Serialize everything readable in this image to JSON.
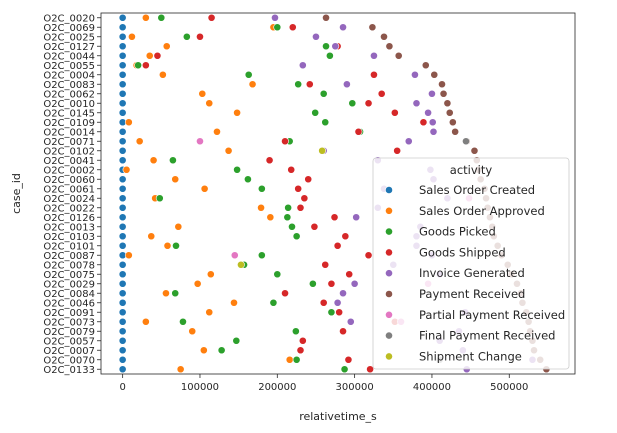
{
  "chart_data": {
    "type": "scatter",
    "xlabel": "relativetime_s",
    "ylabel": "case_id",
    "xlim": [
      -28000,
      585000
    ],
    "xticks": [
      0,
      100000,
      200000,
      300000,
      400000,
      500000
    ],
    "categories": [
      "O2C_0020",
      "O2C_0069",
      "O2C_0025",
      "O2C_0127",
      "O2C_0044",
      "O2C_0055",
      "O2C_0004",
      "O2C_0083",
      "O2C_0062",
      "O2C_0010",
      "O2C_0145",
      "O2C_0109",
      "O2C_0014",
      "O2C_0071",
      "O2C_0102",
      "O2C_0041",
      "O2C_0002",
      "O2C_0060",
      "O2C_0061",
      "O2C_0024",
      "O2C_0022",
      "O2C_0126",
      "O2C_0013",
      "O2C_0103",
      "O2C_0101",
      "O2C_0087",
      "O2C_0078",
      "O2C_0075",
      "O2C_0029",
      "O2C_0084",
      "O2C_0046",
      "O2C_0091",
      "O2C_0073",
      "O2C_0079",
      "O2C_0057",
      "O2C_0007",
      "O2C_0070",
      "O2C_0133"
    ],
    "legend": {
      "title": "activity",
      "position": "lower-right"
    },
    "series": [
      {
        "name": "Sales Order Created",
        "color": "#1f77b4",
        "points": [
          [
            0,
            0
          ],
          [
            0,
            1
          ],
          [
            0,
            2
          ],
          [
            0,
            3
          ],
          [
            0,
            4
          ],
          [
            0,
            5
          ],
          [
            0,
            6
          ],
          [
            0,
            7
          ],
          [
            0,
            8
          ],
          [
            0,
            9
          ],
          [
            0,
            10
          ],
          [
            0,
            11
          ],
          [
            0,
            12
          ],
          [
            0,
            13
          ],
          [
            0,
            14
          ],
          [
            0,
            15
          ],
          [
            0,
            16
          ],
          [
            0,
            17
          ],
          [
            0,
            18
          ],
          [
            0,
            19
          ],
          [
            0,
            20
          ],
          [
            0,
            21
          ],
          [
            0,
            22
          ],
          [
            0,
            23
          ],
          [
            0,
            24
          ],
          [
            0,
            25
          ],
          [
            0,
            26
          ],
          [
            0,
            27
          ],
          [
            0,
            28
          ],
          [
            0,
            29
          ],
          [
            0,
            30
          ],
          [
            0,
            31
          ],
          [
            0,
            32
          ],
          [
            0,
            33
          ],
          [
            0,
            34
          ],
          [
            0,
            35
          ],
          [
            0,
            36
          ],
          [
            0,
            37
          ]
        ]
      },
      {
        "name": "Sales Order Approved",
        "color": "#ff7f0e",
        "points": [
          [
            30000,
            0
          ],
          [
            195000,
            1
          ],
          [
            12000,
            2
          ],
          [
            57000,
            3
          ],
          [
            35000,
            4
          ],
          [
            18000,
            5
          ],
          [
            52000,
            6
          ],
          [
            168000,
            7
          ],
          [
            103000,
            8
          ],
          [
            112000,
            9
          ],
          [
            148000,
            10
          ],
          [
            8000,
            11
          ],
          [
            122000,
            12
          ],
          [
            22000,
            13
          ],
          [
            137000,
            14
          ],
          [
            40000,
            15
          ],
          [
            5000,
            16
          ],
          [
            68000,
            17
          ],
          [
            106000,
            18
          ],
          [
            42000,
            19
          ],
          [
            179000,
            20
          ],
          [
            191000,
            21
          ],
          [
            72000,
            22
          ],
          [
            37000,
            23
          ],
          [
            58000,
            24
          ],
          [
            8000,
            25
          ],
          [
            155000,
            26
          ],
          [
            114000,
            27
          ],
          [
            97000,
            28
          ],
          [
            56000,
            29
          ],
          [
            144000,
            30
          ],
          [
            112000,
            31
          ],
          [
            30000,
            32
          ],
          [
            90000,
            33
          ],
          [
            147000,
            34
          ],
          [
            105000,
            35
          ],
          [
            216000,
            36
          ],
          [
            75000,
            37
          ]
        ]
      },
      {
        "name": "Goods Picked",
        "color": "#2ca02c",
        "points": [
          [
            50000,
            0
          ],
          [
            200000,
            1
          ],
          [
            83000,
            2
          ],
          [
            263000,
            3
          ],
          [
            268000,
            4
          ],
          [
            20000,
            5
          ],
          [
            163000,
            6
          ],
          [
            227000,
            7
          ],
          [
            260000,
            8
          ],
          [
            297000,
            9
          ],
          [
            249000,
            10
          ],
          [
            262000,
            11
          ],
          [
            307000,
            12
          ],
          [
            216000,
            13
          ],
          [
            260000,
            14
          ],
          [
            65000,
            15
          ],
          [
            148000,
            16
          ],
          [
            162000,
            17
          ],
          [
            180000,
            18
          ],
          [
            48000,
            19
          ],
          [
            214000,
            20
          ],
          [
            213000,
            21
          ],
          [
            219000,
            22
          ],
          [
            225000,
            23
          ],
          [
            69000,
            24
          ],
          [
            180000,
            25
          ],
          [
            157000,
            26
          ],
          [
            200000,
            27
          ],
          [
            246000,
            28
          ],
          [
            68000,
            29
          ],
          [
            195000,
            30
          ],
          [
            270000,
            31
          ],
          [
            78000,
            32
          ],
          [
            224000,
            33
          ],
          [
            147000,
            34
          ],
          [
            128000,
            35
          ],
          [
            225000,
            36
          ],
          [
            287000,
            37
          ]
        ]
      },
      {
        "name": "Goods Shipped",
        "color": "#d62728",
        "points": [
          [
            115000,
            0
          ],
          [
            220000,
            1
          ],
          [
            100000,
            2
          ],
          [
            278000,
            3
          ],
          [
            45000,
            4
          ],
          [
            30000,
            5
          ],
          [
            325000,
            6
          ],
          [
            242000,
            7
          ],
          [
            335000,
            8
          ],
          [
            318000,
            9
          ],
          [
            352000,
            10
          ],
          [
            389000,
            11
          ],
          [
            305000,
            12
          ],
          [
            210000,
            13
          ],
          [
            355000,
            14
          ],
          [
            190000,
            15
          ],
          [
            218000,
            16
          ],
          [
            240000,
            17
          ],
          [
            227000,
            18
          ],
          [
            235000,
            19
          ],
          [
            230000,
            20
          ],
          [
            274000,
            21
          ],
          [
            248000,
            22
          ],
          [
            288000,
            23
          ],
          [
            278000,
            24
          ],
          [
            318000,
            25
          ],
          [
            262000,
            26
          ],
          [
            293000,
            27
          ],
          [
            270000,
            28
          ],
          [
            210000,
            29
          ],
          [
            260000,
            30
          ],
          [
            280000,
            31
          ],
          [
            352000,
            32
          ],
          [
            285000,
            33
          ],
          [
            233000,
            34
          ],
          [
            230000,
            35
          ],
          [
            292000,
            36
          ],
          [
            320000,
            37
          ]
        ]
      },
      {
        "name": "Invoice Generated",
        "color": "#9467bd",
        "points": [
          [
            197000,
            0
          ],
          [
            285000,
            1
          ],
          [
            250000,
            2
          ],
          [
            275000,
            3
          ],
          [
            325000,
            4
          ],
          [
            233000,
            5
          ],
          [
            378000,
            6
          ],
          [
            290000,
            7
          ],
          [
            400000,
            8
          ],
          [
            380000,
            9
          ],
          [
            395000,
            10
          ],
          [
            401000,
            11
          ],
          [
            402000,
            12
          ],
          [
            370000,
            13
          ],
          [
            260000,
            14
          ],
          [
            330000,
            15
          ],
          [
            398000,
            16
          ],
          [
            402000,
            17
          ],
          [
            338000,
            18
          ],
          [
            420000,
            19
          ],
          [
            330000,
            20
          ],
          [
            302000,
            21
          ],
          [
            385000,
            22
          ],
          [
            380000,
            23
          ],
          [
            380000,
            24
          ],
          [
            400000,
            25
          ],
          [
            350000,
            26
          ],
          [
            410000,
            27
          ],
          [
            300000,
            28
          ],
          [
            285000,
            29
          ],
          [
            278000,
            30
          ],
          [
            443000,
            31
          ],
          [
            295000,
            32
          ],
          [
            435000,
            33
          ],
          [
            410000,
            34
          ],
          [
            440000,
            35
          ],
          [
            530000,
            36
          ],
          [
            445000,
            37
          ]
        ]
      },
      {
        "name": "Payment Received",
        "color": "#8c564b",
        "points": [
          [
            263000,
            0
          ],
          [
            323000,
            1
          ],
          [
            338000,
            2
          ],
          [
            345000,
            3
          ],
          [
            357000,
            4
          ],
          [
            392000,
            5
          ],
          [
            403000,
            6
          ],
          [
            413000,
            7
          ],
          [
            415000,
            8
          ],
          [
            420000,
            9
          ],
          [
            423000,
            10
          ],
          [
            427000,
            11
          ],
          [
            430000,
            12
          ],
          [
            445000,
            13
          ],
          [
            455000,
            14
          ],
          [
            458000,
            15
          ],
          [
            460000,
            16
          ],
          [
            463000,
            17
          ],
          [
            468000,
            18
          ],
          [
            470000,
            19
          ],
          [
            472000,
            20
          ],
          [
            475000,
            21
          ],
          [
            478000,
            22
          ],
          [
            480000,
            23
          ],
          [
            485000,
            24
          ],
          [
            490000,
            25
          ],
          [
            498000,
            26
          ],
          [
            503000,
            27
          ],
          [
            510000,
            28
          ],
          [
            515000,
            29
          ],
          [
            517000,
            30
          ],
          [
            522000,
            31
          ],
          [
            525000,
            32
          ],
          [
            527000,
            33
          ],
          [
            530000,
            34
          ],
          [
            532000,
            35
          ],
          [
            540000,
            36
          ],
          [
            548000,
            37
          ]
        ]
      },
      {
        "name": "Partial Payment Received",
        "color": "#e377c2",
        "points": [
          [
            100000,
            13
          ],
          [
            145000,
            25
          ],
          [
            448000,
            19
          ],
          [
            395000,
            28
          ],
          [
            360000,
            32
          ]
        ]
      },
      {
        "name": "Final Payment Received",
        "color": "#7f7f7f",
        "points": [
          [
            444000,
            13
          ],
          [
            410000,
            36
          ]
        ]
      },
      {
        "name": "Shipment Change",
        "color": "#bcbd22",
        "points": [
          [
            258000,
            14
          ],
          [
            153000,
            26
          ]
        ]
      }
    ]
  }
}
